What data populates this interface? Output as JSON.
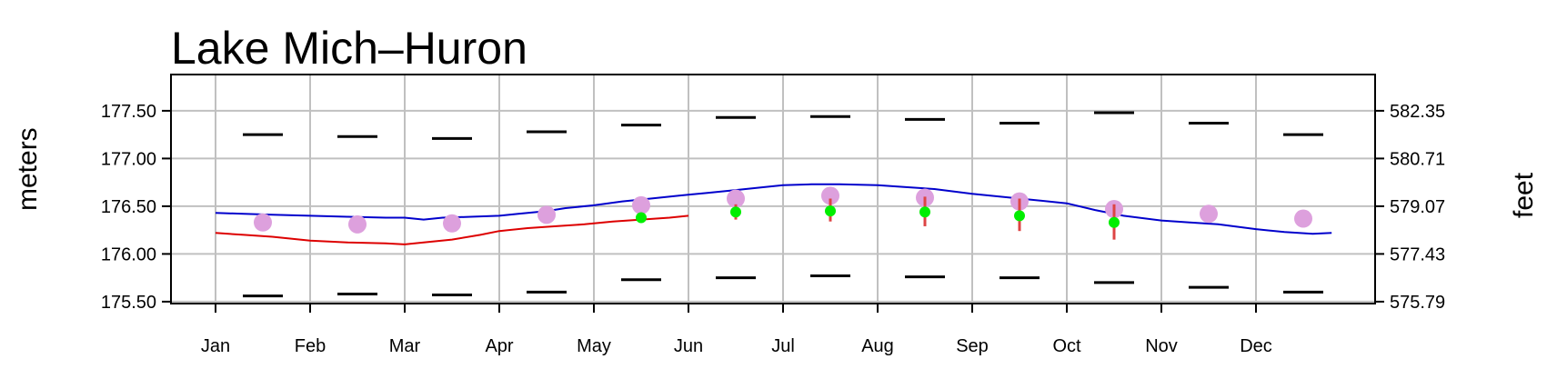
{
  "chart_data": {
    "type": "line",
    "title": "Lake Mich–Huron",
    "ylabel": "meters",
    "ylabel_right": "feet",
    "ylim": [
      175.48,
      177.88
    ],
    "yticks": [
      "175.50",
      "176.00",
      "176.50",
      "177.00",
      "177.50"
    ],
    "yticks_right": [
      "575.79",
      "577.43",
      "579.07",
      "580.71",
      "582.35"
    ],
    "x_months": [
      "Jan",
      "Feb",
      "Mar",
      "Apr",
      "May",
      "Jun",
      "Jul",
      "Aug",
      "Sep",
      "Oct",
      "Nov",
      "Dec"
    ],
    "grid": true,
    "series": [
      {
        "color": "#0000cc",
        "points": [
          [
            0.0,
            176.43
          ],
          [
            0.3,
            176.42
          ],
          [
            0.6,
            176.41
          ],
          [
            1.0,
            176.4
          ],
          [
            1.4,
            176.39
          ],
          [
            1.8,
            176.38
          ],
          [
            2.0,
            176.38
          ],
          [
            2.2,
            176.36
          ],
          [
            2.4,
            176.38
          ],
          [
            2.7,
            176.39
          ],
          [
            3.0,
            176.4
          ],
          [
            3.2,
            176.42
          ],
          [
            3.5,
            176.45
          ],
          [
            3.7,
            176.48
          ],
          [
            4.0,
            176.51
          ],
          [
            4.3,
            176.55
          ],
          [
            4.6,
            176.58
          ],
          [
            4.9,
            176.61
          ],
          [
            5.2,
            176.64
          ],
          [
            5.5,
            176.67
          ],
          [
            5.8,
            176.7
          ],
          [
            6.0,
            176.72
          ],
          [
            6.3,
            176.73
          ],
          [
            6.6,
            176.73
          ],
          [
            7.0,
            176.72
          ],
          [
            7.3,
            176.7
          ],
          [
            7.6,
            176.68
          ],
          [
            8.0,
            176.63
          ],
          [
            8.3,
            176.6
          ],
          [
            8.6,
            176.57
          ],
          [
            9.0,
            176.53
          ],
          [
            9.3,
            176.46
          ],
          [
            9.6,
            176.4
          ],
          [
            10.0,
            176.35
          ],
          [
            10.3,
            176.33
          ],
          [
            10.6,
            176.31
          ],
          [
            11.0,
            176.26
          ],
          [
            11.3,
            176.23
          ],
          [
            11.6,
            176.21
          ],
          [
            11.8,
            176.22
          ]
        ]
      },
      {
        "color": "#dd0000",
        "points": [
          [
            0.0,
            176.22
          ],
          [
            0.3,
            176.2
          ],
          [
            0.6,
            176.18
          ],
          [
            1.0,
            176.14
          ],
          [
            1.4,
            176.12
          ],
          [
            1.8,
            176.11
          ],
          [
            2.0,
            176.1
          ],
          [
            2.2,
            176.12
          ],
          [
            2.5,
            176.15
          ],
          [
            2.8,
            176.2
          ],
          [
            3.0,
            176.24
          ],
          [
            3.3,
            176.27
          ],
          [
            3.6,
            176.29
          ],
          [
            3.9,
            176.31
          ],
          [
            4.2,
            176.34
          ],
          [
            4.5,
            176.36
          ],
          [
            4.8,
            176.38
          ],
          [
            5.0,
            176.4
          ]
        ]
      }
    ],
    "monthly_mean": [
      176.33,
      176.31,
      176.32,
      176.41,
      176.51,
      176.58,
      176.61,
      176.59,
      176.55,
      176.47,
      176.42,
      176.37
    ],
    "monthly_max": [
      177.25,
      177.23,
      177.21,
      177.28,
      177.35,
      177.43,
      177.44,
      177.41,
      177.37,
      177.48,
      177.37,
      177.25
    ],
    "monthly_min": [
      175.56,
      175.58,
      175.57,
      175.6,
      175.73,
      175.75,
      175.77,
      175.76,
      175.75,
      175.7,
      175.65,
      175.6
    ],
    "forecast": [
      {
        "month": 4.5,
        "value": 176.38,
        "low": 176.37,
        "high": 176.43
      },
      {
        "month": 5.5,
        "value": 176.44,
        "low": 176.36,
        "high": 176.52
      },
      {
        "month": 6.5,
        "value": 176.45,
        "low": 176.34,
        "high": 176.58
      },
      {
        "month": 7.5,
        "value": 176.44,
        "low": 176.29,
        "high": 176.6
      },
      {
        "month": 8.5,
        "value": 176.4,
        "low": 176.24,
        "high": 176.58
      },
      {
        "month": 9.5,
        "value": 176.33,
        "low": 176.15,
        "high": 176.52
      }
    ],
    "colors": {
      "mean_marker": "#dda0dd",
      "forecast_point": "#00ee00",
      "forecast_range": "#dd4444",
      "extreme": "#000000",
      "grid": "#c0c0c0"
    }
  }
}
